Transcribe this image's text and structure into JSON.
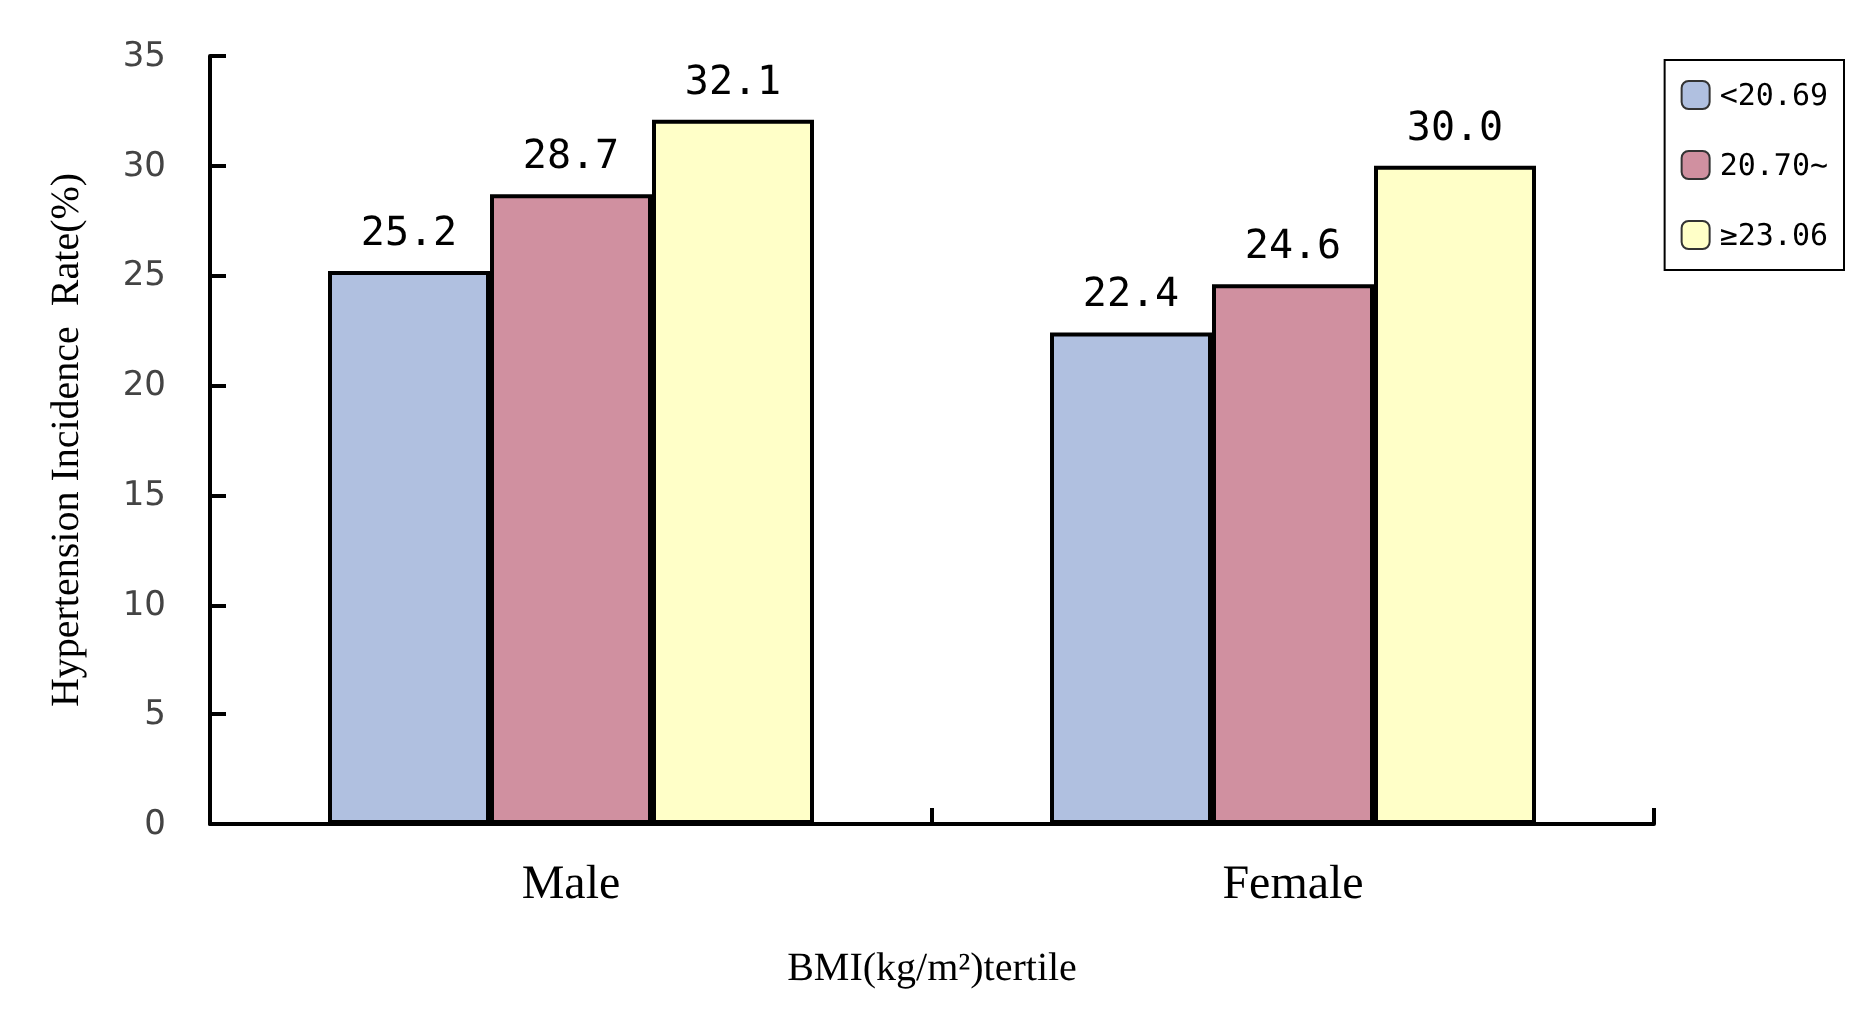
{
  "chart_data": {
    "type": "bar",
    "categories": [
      "Male",
      "Female"
    ],
    "series": [
      {
        "name": "<20.69",
        "color": "#b0c0e0",
        "values": [
          25.2,
          22.4
        ]
      },
      {
        "name": "20.70~",
        "color": "#d090a0",
        "values": [
          28.7,
          24.6
        ]
      },
      {
        "name": "≥23.06",
        "color": "#ffffc8",
        "values": [
          32.1,
          30.0
        ]
      }
    ],
    "value_labels": [
      [
        "25.2",
        "22.4"
      ],
      [
        "28.7",
        "24.6"
      ],
      [
        "32.1",
        "30.0"
      ]
    ],
    "xlabel": "BMI(kg/m²)tertile",
    "ylabel": "Hypertension Incidence  Rate(%)",
    "ylim": [
      0,
      35
    ],
    "yticks": [
      0,
      5,
      10,
      15,
      20,
      25,
      30,
      35
    ],
    "grid": false,
    "legend": "top right"
  }
}
